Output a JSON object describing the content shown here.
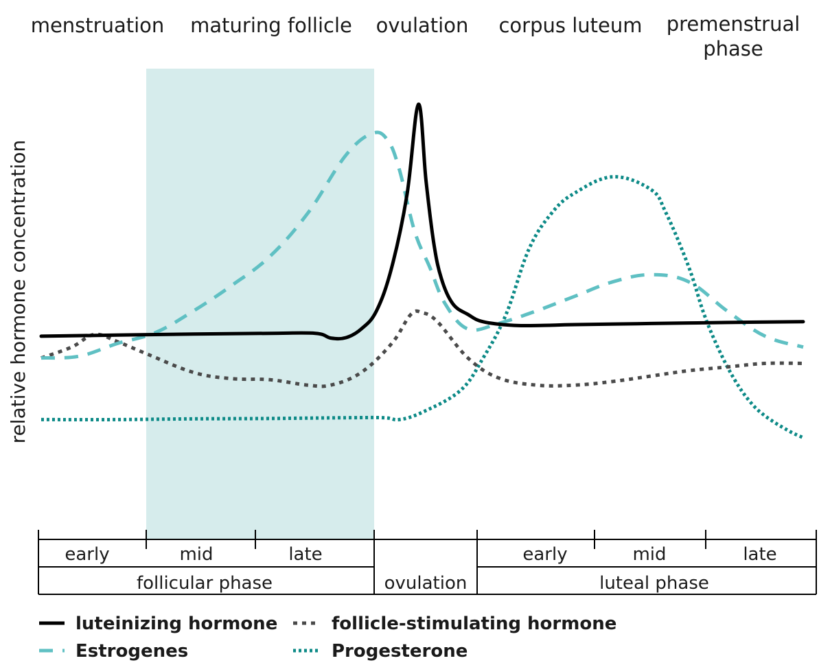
{
  "chart_data": {
    "type": "line",
    "title": "",
    "ylabel": "relative hormone concentration",
    "xlabel": "",
    "stages": [
      "menstruation",
      "maturing follicle",
      "ovulation",
      "corpus luteum",
      "premenstrual phase"
    ],
    "subphases": [
      "early",
      "mid",
      "late",
      "",
      "early",
      "mid",
      "late"
    ],
    "phases": [
      "follicular phase",
      "ovulation",
      "luteal phase"
    ],
    "highlight": {
      "label": "maturing follicle",
      "color": "#d6ecec"
    },
    "legend": [
      "luteinizing hormone",
      "follicle-stimulating hormone",
      "Estrogenes",
      "Progesterone"
    ],
    "x_range": [
      0,
      100
    ],
    "y_range": [
      0,
      100
    ],
    "grid": false,
    "series": [
      {
        "name": "luteinizing hormone",
        "style": "solid",
        "color": "#000000",
        "x": [
          0,
          10,
          20,
          30,
          36,
          38,
          40,
          42,
          44,
          46,
          48,
          49.5,
          50.5,
          51.5,
          52.5,
          54,
          56,
          58,
          62,
          66,
          70,
          80,
          90,
          100
        ],
        "y": [
          36,
          36.3,
          36.6,
          36.8,
          36.8,
          35.5,
          35.6,
          38,
          43,
          55,
          75,
          100,
          79,
          62,
          52,
          45,
          42,
          40,
          39,
          39,
          39.2,
          39.5,
          39.8,
          40
        ]
      },
      {
        "name": "follicle-stimulating hormone",
        "style": "dotted-square",
        "color": "#4a4a4a",
        "x": [
          0,
          4,
          7,
          10,
          14,
          20,
          25,
          30,
          35,
          38,
          42,
          46,
          48.5,
          50,
          52,
          56,
          60,
          65,
          70,
          75,
          80,
          85,
          90,
          95,
          100
        ],
        "y": [
          30,
          33,
          36.5,
          34.5,
          31,
          26,
          24.3,
          24,
          22.5,
          22.5,
          26,
          34,
          42,
          42.5,
          40,
          30,
          24.5,
          22.5,
          22.5,
          23.5,
          25,
          26.5,
          27.5,
          28.5,
          28.5
        ]
      },
      {
        "name": "Estrogenes",
        "style": "dashed",
        "color": "#5fc0c3",
        "x": [
          0,
          5,
          10,
          15,
          20,
          25,
          30,
          35,
          40,
          43.5,
          45.5,
          47,
          49,
          51,
          53,
          56,
          60,
          65,
          70,
          75,
          80,
          85,
          90,
          95,
          100
        ],
        "y": [
          30,
          30.5,
          34,
          37,
          43,
          50,
          58,
          70,
          86,
          92,
          90,
          82,
          65,
          55,
          45,
          38,
          39.5,
          43,
          47,
          51,
          53,
          51,
          43,
          36,
          33
        ]
      },
      {
        "name": "Progesterone",
        "style": "dotted",
        "color": "#0d8a87",
        "x": [
          0,
          10,
          20,
          30,
          40,
          45,
          47,
          50,
          55,
          58,
          61,
          64,
          67,
          70,
          75,
          80,
          82,
          85,
          87,
          89,
          91,
          93,
          95,
          98,
          100
        ],
        "y": [
          13,
          13,
          13.2,
          13.3,
          13.5,
          13.5,
          13,
          15,
          21,
          30,
          42,
          60,
          70,
          75.5,
          80,
          76.5,
          70,
          55,
          42,
          32,
          24,
          18,
          14,
          10,
          8
        ]
      }
    ]
  }
}
